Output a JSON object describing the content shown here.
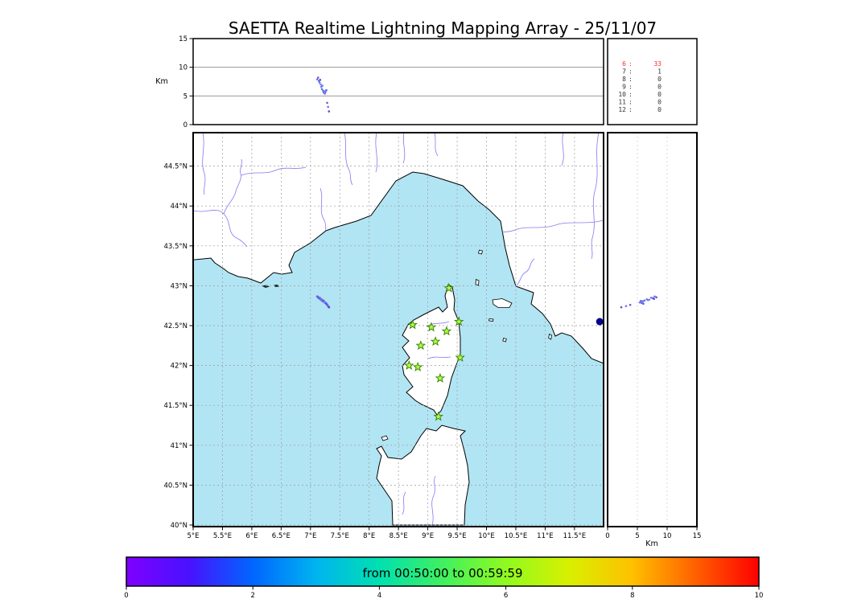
{
  "title": "SAETTA Realtime Lightning Mapping Array - 25/11/07",
  "colors": {
    "sea": "#b2e5f3",
    "land": "#ffffff",
    "river": "#7b68ee",
    "station_fill": "#aaff40",
    "station_edge": "#3a7d00",
    "grid": "#999999",
    "count_highlight": "#ff2a2a",
    "count_normal": "#333333"
  },
  "chart_data": {
    "type": "scatter",
    "title": "SAETTA Realtime Lightning Mapping Array - 25/11/07",
    "panels": [
      "altitude-vs-longitude",
      "map",
      "altitude-vs-latitude",
      "source-counts",
      "time-colorbar"
    ],
    "map": {
      "lon_range": [
        5,
        12
      ],
      "lat_range": [
        40,
        44.94
      ],
      "lat_ticks": [
        {
          "value": 44.5,
          "label": "44.5°N"
        },
        {
          "value": 44,
          "label": "44°N"
        },
        {
          "value": 43.5,
          "label": "43.5°N"
        },
        {
          "value": 43,
          "label": "43°N"
        },
        {
          "value": 42.5,
          "label": "42.5°N"
        },
        {
          "value": 42,
          "label": "42°N"
        },
        {
          "value": 41.5,
          "label": "41.5°N"
        },
        {
          "value": 41,
          "label": "41°N"
        },
        {
          "value": 40.5,
          "label": "40.5°N"
        },
        {
          "value": 40,
          "label": "40°N"
        }
      ],
      "lon_ticks": [
        {
          "value": 5,
          "label": "5°E"
        },
        {
          "value": 5.5,
          "label": "5.5°E"
        },
        {
          "value": 6,
          "label": "6°E"
        },
        {
          "value": 6.5,
          "label": "6.5°E"
        },
        {
          "value": 7,
          "label": "7°E"
        },
        {
          "value": 7.5,
          "label": "7.5°E"
        },
        {
          "value": 8,
          "label": "8°E"
        },
        {
          "value": 8.5,
          "label": "8.5°E"
        },
        {
          "value": 9,
          "label": "9°E"
        },
        {
          "value": 9.5,
          "label": "9.5°E"
        },
        {
          "value": 10,
          "label": "10°E"
        },
        {
          "value": 10.5,
          "label": "10.5°E"
        },
        {
          "value": 11,
          "label": "11°E"
        },
        {
          "value": 11.5,
          "label": "11.5°E"
        }
      ]
    },
    "alt_axis": {
      "label": "Km",
      "range": [
        0,
        15
      ],
      "ticks": [
        0,
        5,
        10,
        15
      ],
      "reference_lines": [
        5,
        10
      ]
    },
    "stations": [
      {
        "lon": 9.36,
        "lat": 42.97
      },
      {
        "lon": 8.74,
        "lat": 42.51
      },
      {
        "lon": 9.06,
        "lat": 42.48
      },
      {
        "lon": 9.32,
        "lat": 42.43
      },
      {
        "lon": 9.53,
        "lat": 42.55
      },
      {
        "lon": 8.88,
        "lat": 42.25
      },
      {
        "lon": 9.13,
        "lat": 42.3
      },
      {
        "lon": 9.55,
        "lat": 42.1
      },
      {
        "lon": 8.68,
        "lat": 42.0
      },
      {
        "lon": 8.83,
        "lat": 41.98
      },
      {
        "lon": 9.21,
        "lat": 41.84
      },
      {
        "lon": 9.18,
        "lat": 41.36
      }
    ],
    "sources": [
      {
        "lon": 7.115,
        "lat": 42.865,
        "alt_km": 7.9,
        "color": "#7b68ee"
      },
      {
        "lon": 7.13,
        "lat": 42.855,
        "alt_km": 8.2,
        "color": "#6a5acd"
      },
      {
        "lon": 7.145,
        "lat": 42.845,
        "alt_km": 7.6,
        "color": "#4169e1"
      },
      {
        "lon": 7.155,
        "lat": 42.85,
        "alt_km": 7.3,
        "color": "#8470ff"
      },
      {
        "lon": 7.165,
        "lat": 42.835,
        "alt_km": 7.8,
        "color": "#5a4fcf"
      },
      {
        "lon": 7.175,
        "lat": 42.825,
        "alt_km": 7.0,
        "color": "#6495ed"
      },
      {
        "lon": 7.185,
        "lat": 42.83,
        "alt_km": 6.6,
        "color": "#7b68ee"
      },
      {
        "lon": 7.195,
        "lat": 42.815,
        "alt_km": 6.2,
        "color": "#4682d9"
      },
      {
        "lon": 7.205,
        "lat": 42.82,
        "alt_km": 6.8,
        "color": "#9370db"
      },
      {
        "lon": 7.215,
        "lat": 42.805,
        "alt_km": 5.9,
        "color": "#4169e1"
      },
      {
        "lon": 7.225,
        "lat": 42.81,
        "alt_km": 5.6,
        "color": "#6a5acd"
      },
      {
        "lon": 7.235,
        "lat": 42.795,
        "alt_km": 5.8,
        "color": "#6495ed"
      },
      {
        "lon": 7.245,
        "lat": 42.79,
        "alt_km": 5.4,
        "color": "#8470ff"
      },
      {
        "lon": 7.255,
        "lat": 42.785,
        "alt_km": 5.7,
        "color": "#7b68ee"
      },
      {
        "lon": 7.27,
        "lat": 42.775,
        "alt_km": 6.0,
        "color": "#4169e1"
      },
      {
        "lon": 7.285,
        "lat": 42.76,
        "alt_km": 3.8,
        "color": "#6a5acd"
      },
      {
        "lon": 7.3,
        "lat": 42.745,
        "alt_km": 3.1,
        "color": "#7b68ee"
      },
      {
        "lon": 7.315,
        "lat": 42.73,
        "alt_km": 2.3,
        "color": "#5a4fcf"
      }
    ],
    "large_event": {
      "lon": 11.93,
      "lat": 42.55,
      "color": "#00008b"
    },
    "counts": [
      {
        "label": "6",
        "value": "33",
        "highlight": true
      },
      {
        "label": "7",
        "value": "1",
        "highlight": false
      },
      {
        "label": "8",
        "value": "0",
        "highlight": false
      },
      {
        "label": "9",
        "value": "0",
        "highlight": false
      },
      {
        "label": "10",
        "value": "0",
        "highlight": false
      },
      {
        "label": "11",
        "value": "0",
        "highlight": false
      },
      {
        "label": "12",
        "value": "0",
        "highlight": false
      }
    ],
    "colorbar": {
      "label": "from 00:50:00 to 00:59:59",
      "range": [
        0,
        10
      ],
      "ticks": [
        0,
        2,
        4,
        6,
        8,
        10
      ],
      "gradient": [
        "#7f00ff",
        "#4812ff",
        "#0066ff",
        "#00b4f0",
        "#00e0b0",
        "#40f060",
        "#90fa20",
        "#d8f000",
        "#ffc000",
        "#ff6000",
        "#ff0000"
      ]
    }
  }
}
